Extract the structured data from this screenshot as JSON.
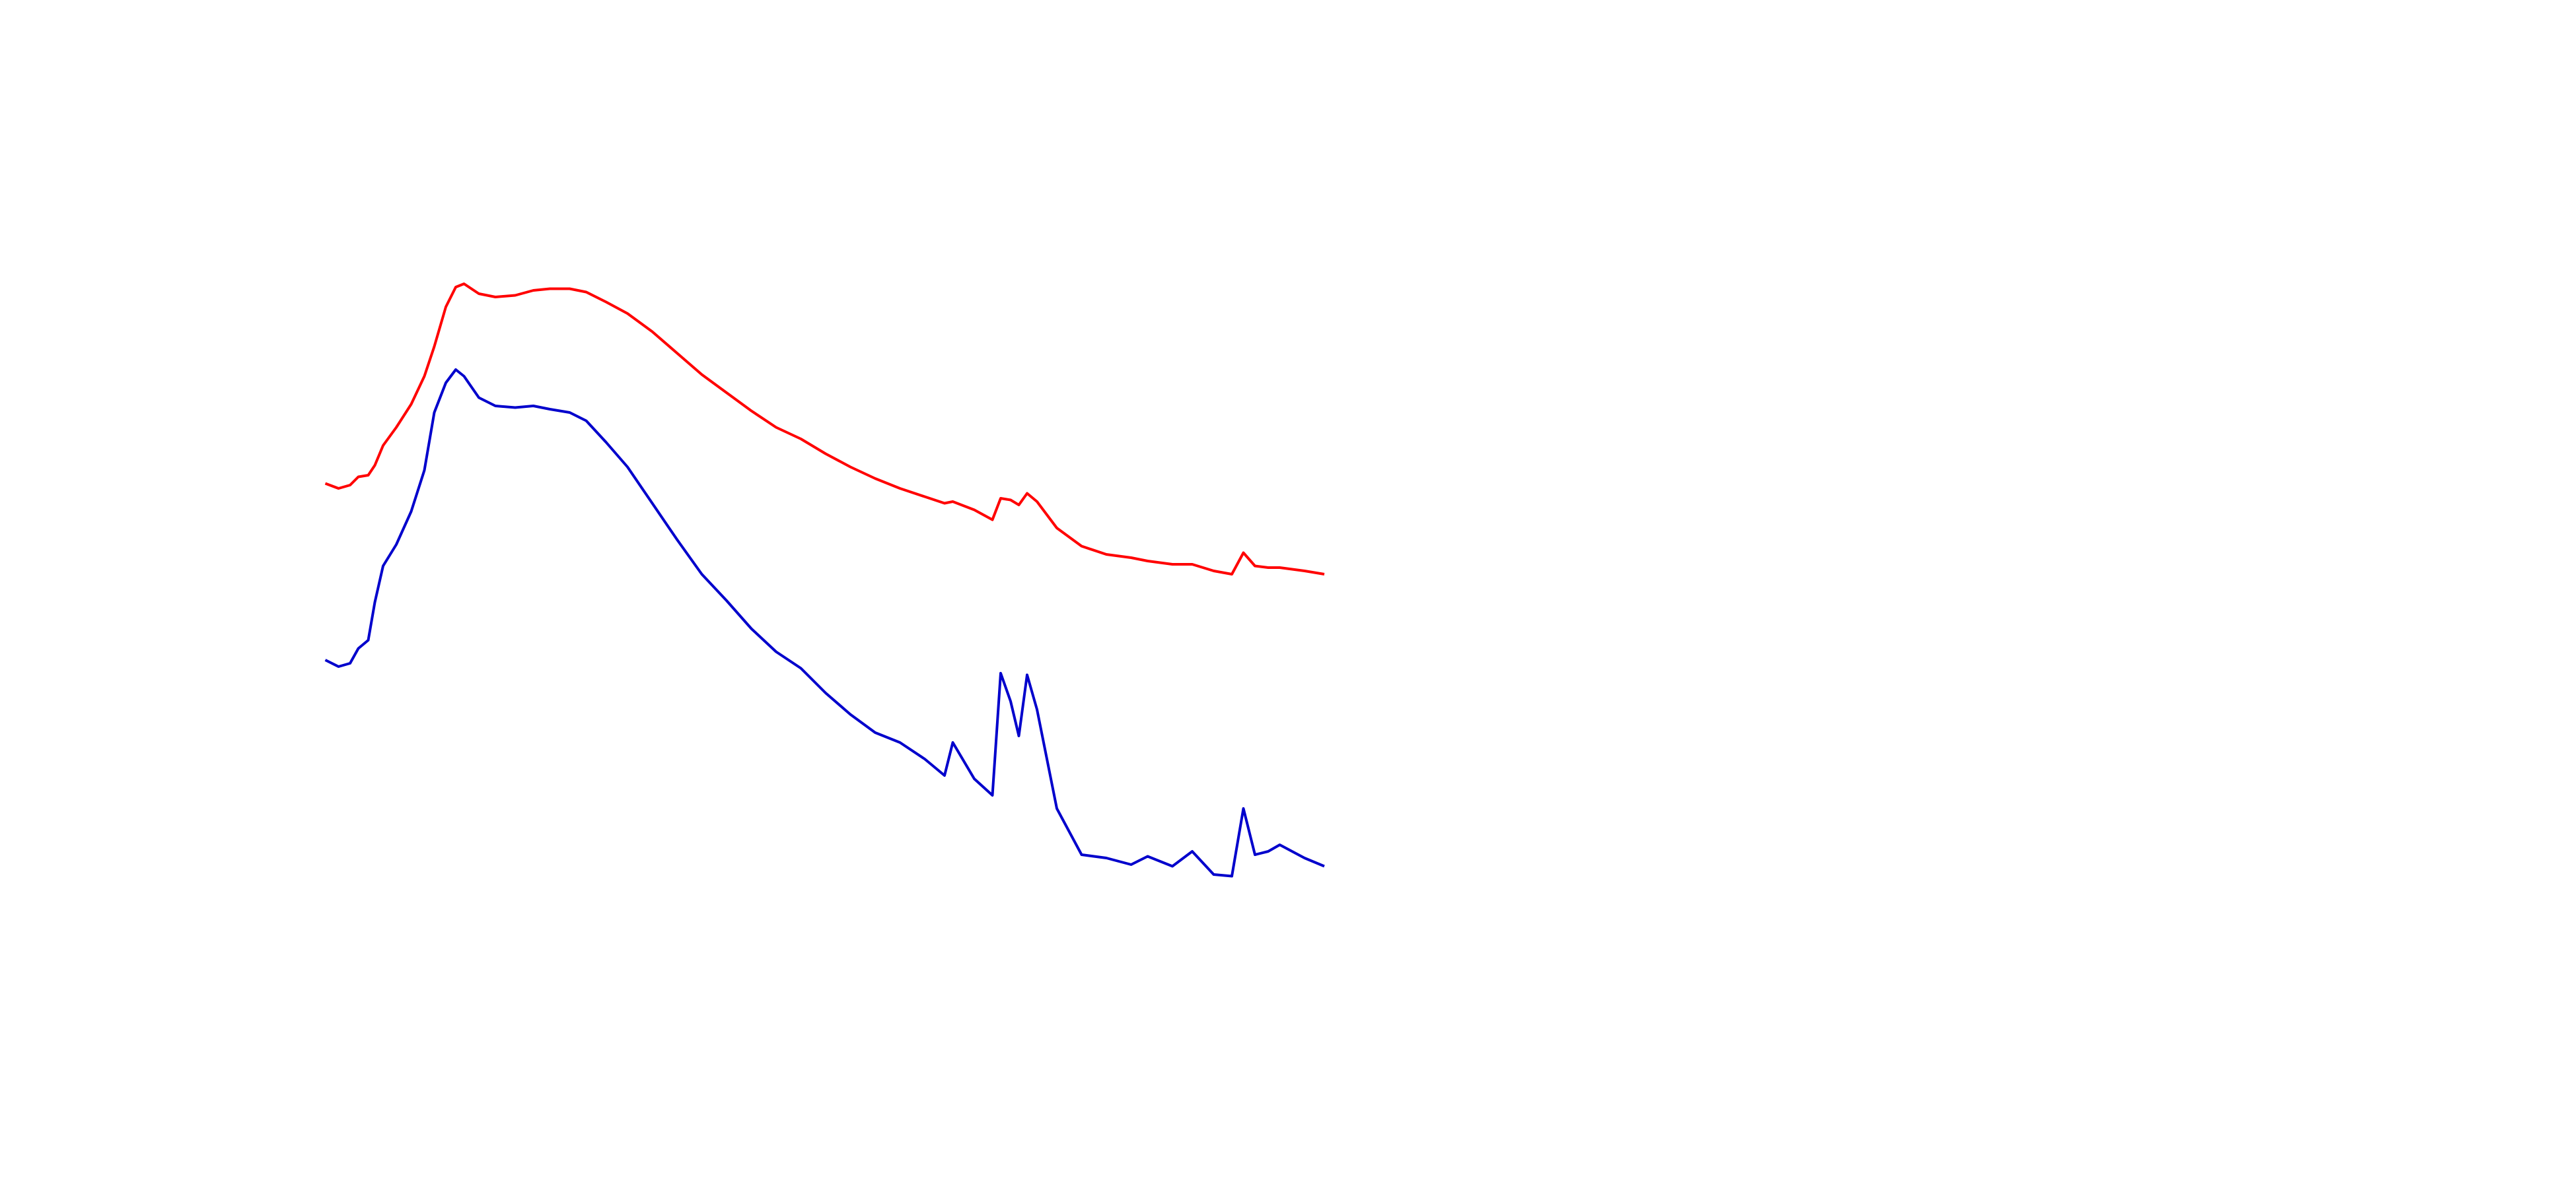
{
  "chart_data": {
    "type": "line",
    "x": [
      0,
      8,
      15,
      20,
      26,
      30,
      35,
      43,
      52,
      60,
      66,
      73,
      79,
      84,
      93,
      103,
      115,
      126,
      136,
      148,
      158,
      170,
      183,
      198,
      213,
      228,
      243,
      258,
      273,
      288,
      303,
      318,
      333,
      348,
      363,
      375,
      380,
      393,
      404,
      409,
      415,
      420,
      425,
      431,
      443,
      458,
      473,
      488,
      498,
      513,
      525,
      538,
      549,
      556,
      563,
      571,
      578,
      593,
      605
    ],
    "xlim": [
      0,
      605
    ],
    "ylim": [
      0,
      720
    ],
    "series": [
      {
        "color": "#ff0000",
        "values": [
          427,
          424,
          426,
          431,
          432,
          438,
          450,
          461,
          475,
          492,
          510,
          534,
          546,
          548,
          542,
          540,
          541,
          544,
          545,
          545,
          543,
          537,
          530,
          519,
          506,
          493,
          482,
          471,
          461,
          454,
          445,
          437,
          430,
          424,
          419,
          415,
          416,
          411,
          405,
          418,
          417,
          414,
          421,
          416,
          400,
          389,
          384,
          382,
          380,
          378,
          378,
          374,
          372,
          385,
          377,
          376,
          376,
          374,
          372
        ]
      },
      {
        "color": "#0000cc",
        "values": [
          320,
          316,
          318,
          327,
          332,
          355,
          377,
          390,
          410,
          435,
          470,
          488,
          496,
          492,
          479,
          474,
          473,
          474,
          472,
          470,
          465,
          452,
          437,
          415,
          393,
          372,
          356,
          339,
          325,
          315,
          300,
          287,
          276,
          270,
          260,
          250,
          270,
          248,
          238,
          312,
          295,
          274,
          311,
          290,
          230,
          202,
          200,
          196,
          201,
          195,
          204,
          190,
          189,
          230,
          202,
          204,
          208,
          200,
          195
        ]
      }
    ]
  }
}
